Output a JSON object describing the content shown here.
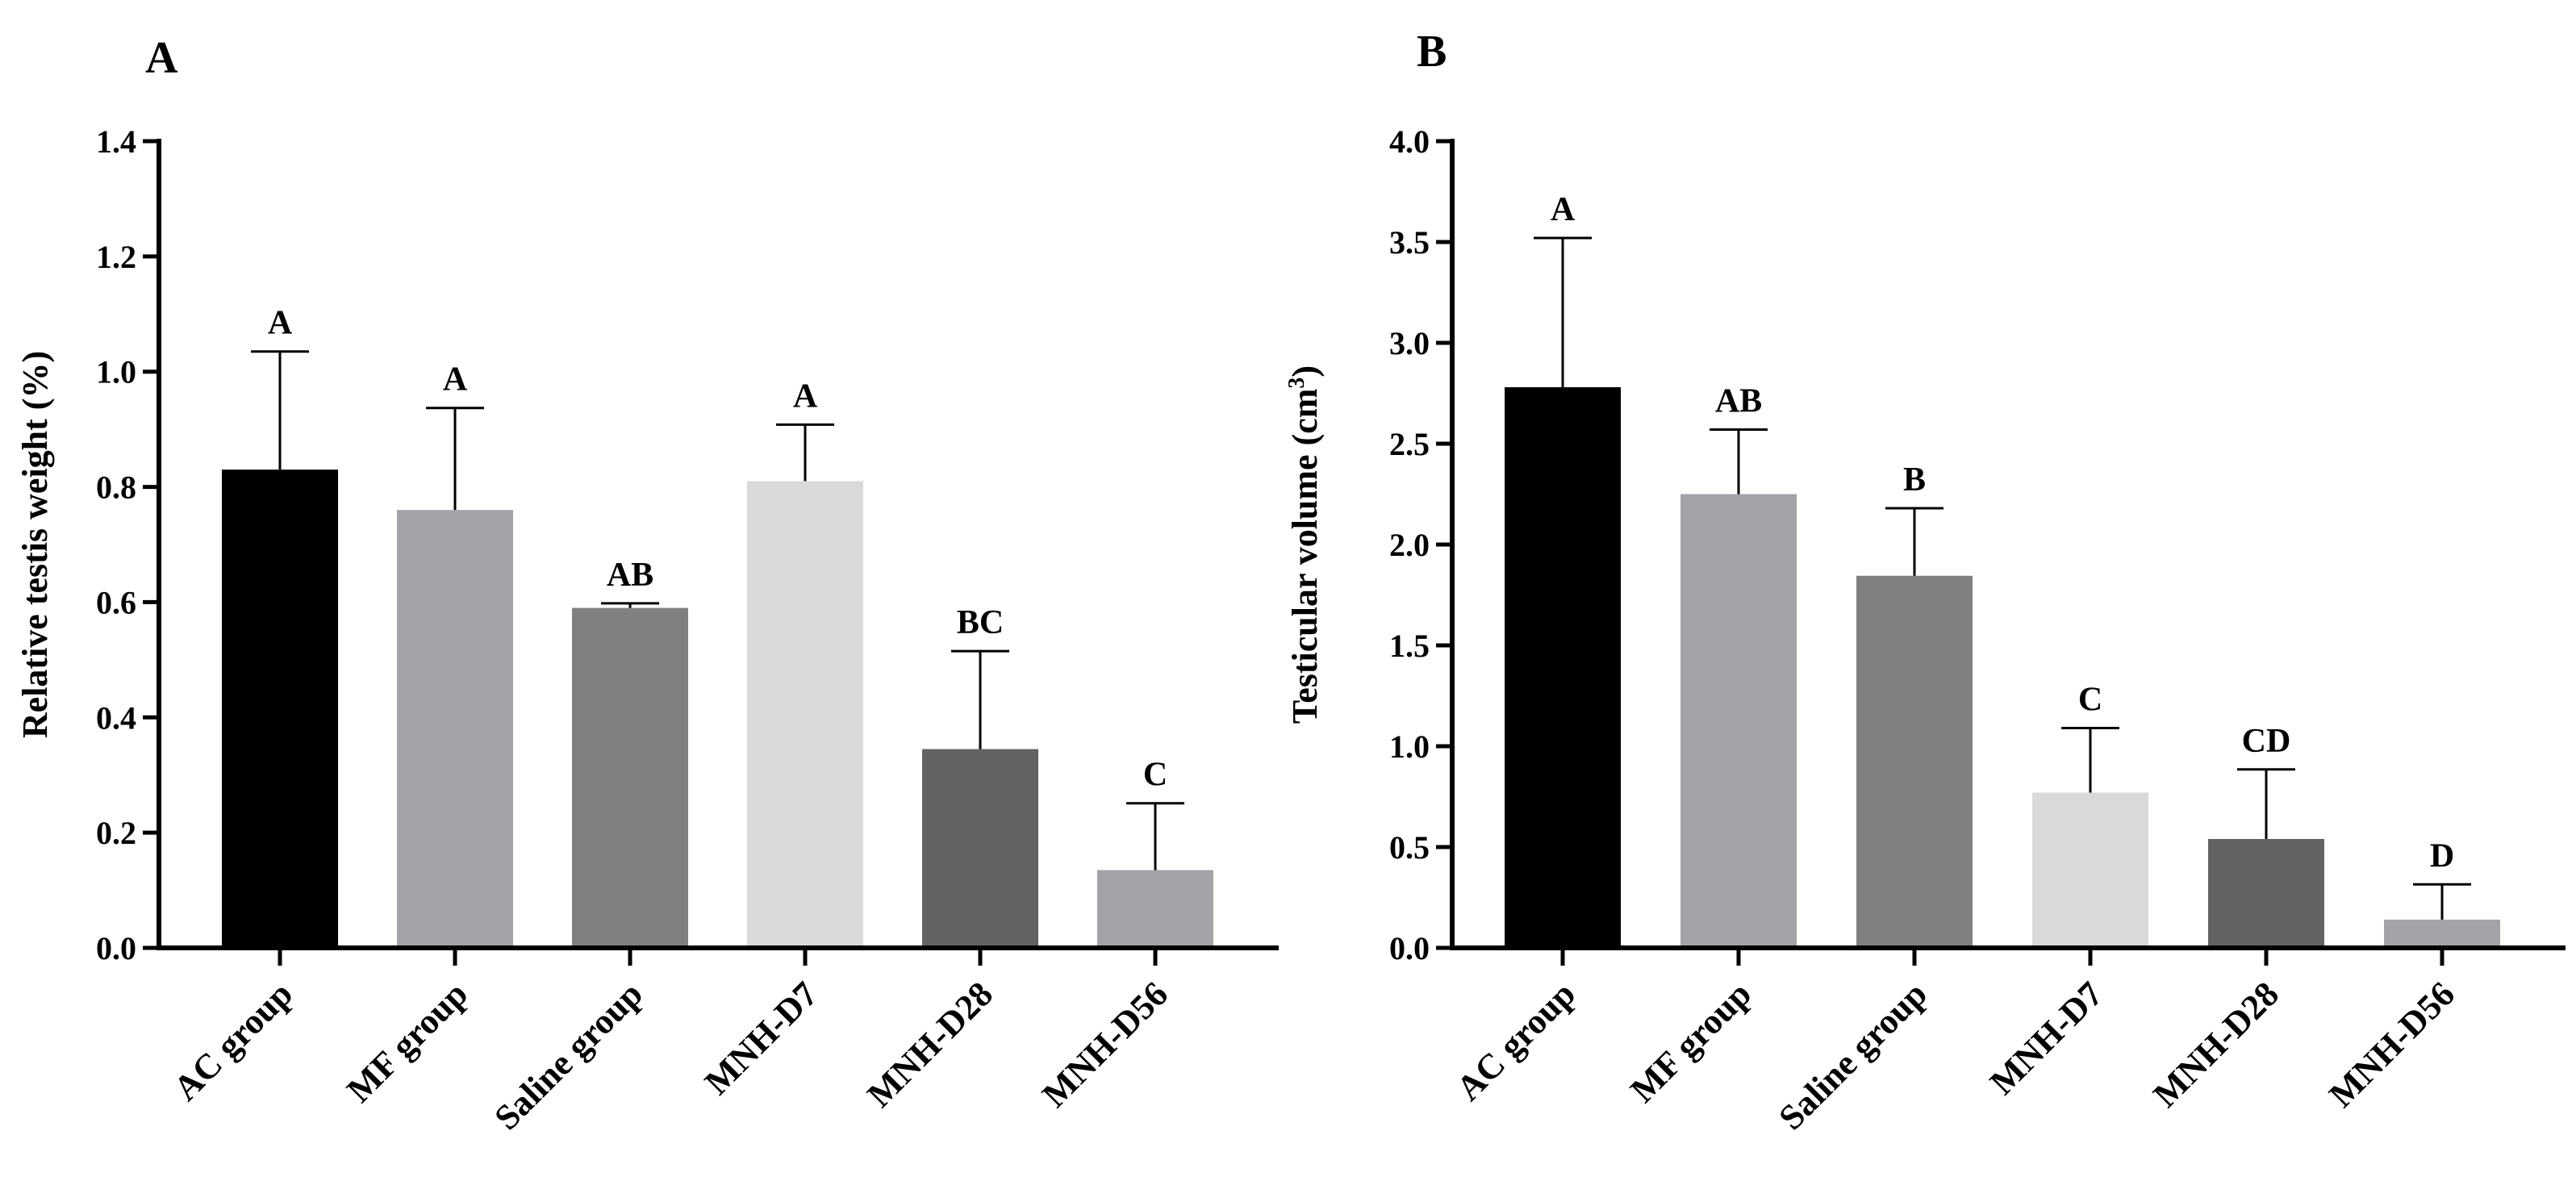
{
  "chart_data": [
    {
      "type": "bar",
      "panel": "A",
      "ylabel": "Relative testis weight (%)",
      "ylim": [
        0,
        1.4
      ],
      "yticks": [
        0.0,
        0.2,
        0.4,
        0.6,
        0.8,
        1.0,
        1.2,
        1.4
      ],
      "ytick_labels": [
        "0.0",
        "0.2",
        "0.4",
        "0.6",
        "0.8",
        "1.0",
        "1.2",
        "1.4"
      ],
      "categories": [
        "AC group",
        "MF group",
        "Saline group",
        "MNH-D7",
        "MNH-D28",
        "MNH-D56"
      ],
      "values": [
        0.83,
        0.76,
        0.59,
        0.81,
        0.345,
        0.135
      ],
      "error_upper": [
        1.035,
        0.937,
        0.598,
        0.908,
        0.515,
        0.251
      ],
      "significance": [
        "A",
        "A",
        "AB",
        "A",
        "BC",
        "C"
      ],
      "colors": [
        "#000000",
        "#a3a3a8",
        "#808080",
        "#d9d9d9",
        "#636363",
        "#a3a3a8"
      ]
    },
    {
      "type": "bar",
      "panel": "B",
      "ylabel": "Testicular volume (cm",
      "ylabel_sup": "3",
      "ylabel_end": ")",
      "ylim": [
        0,
        4.0
      ],
      "yticks": [
        0.0,
        0.5,
        1.0,
        1.5,
        2.0,
        2.5,
        3.0,
        3.5,
        4.0
      ],
      "ytick_labels": [
        "0.0",
        "0.5",
        "1.0",
        "1.5",
        "2.0",
        "2.5",
        "3.0",
        "3.5",
        "4.0"
      ],
      "categories": [
        "AC group",
        "MF group",
        "Saline group",
        "MNH-D7",
        "MNH-D28",
        "MNH-D56"
      ],
      "values": [
        2.78,
        2.25,
        1.845,
        0.77,
        0.54,
        0.14
      ],
      "error_upper": [
        3.52,
        2.57,
        2.18,
        1.09,
        0.885,
        0.315
      ],
      "significance": [
        "A",
        "AB",
        "B",
        "C",
        "CD",
        "D"
      ],
      "colors": [
        "#000000",
        "#a3a3a8",
        "#808080",
        "#d9d9d9",
        "#636363",
        "#a3a3a8"
      ]
    }
  ]
}
